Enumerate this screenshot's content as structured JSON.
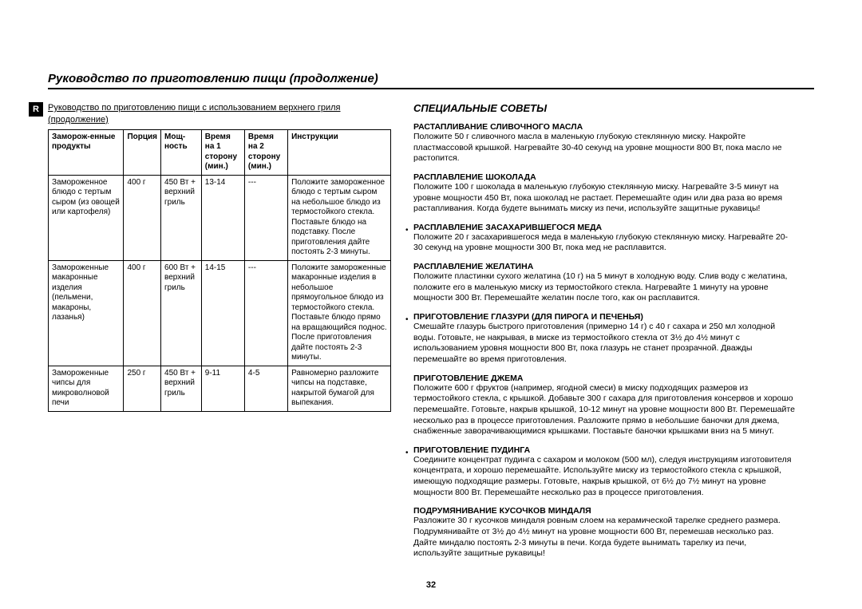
{
  "page": {
    "title": "Руководство по приготовлению пищи (продолжение)",
    "number": "32",
    "side_tab": "R"
  },
  "left": {
    "heading": "Руководство по приготовлению пищи с использованием верхнего гриля (продолжение)",
    "table": {
      "headers": [
        "Заморож-енные продукты",
        "Порция",
        "Мощ-ность",
        "Время на 1 сторону (мин.)",
        "Время на 2 сторону (мин.)",
        "Инструкции"
      ],
      "rows": [
        [
          "Замороженное блюдо с тертым сыром (из овощей или картофеля)",
          "400 г",
          "450 Вт + верхний гриль",
          "13-14",
          "---",
          "Положите замороженное блюдо с тертым сыром на небольшое блюдо из термостойкого стекла. Поставьте блюдо на подставку. После приготовления дайте постоять 2-3 минуты."
        ],
        [
          "Замороженные макаронные изделия (пельмени, макароны, лазанья)",
          "400 г",
          "600 Вт + верхний гриль",
          "14-15",
          "---",
          "Положите замороженные макаронные изделия в небольшое прямоугольное блюдо из термостойкого стекла. Поставьте блюдо прямо на вращающийся поднос. После приготовления дайте постоять 2-3 минуты."
        ],
        [
          "Замороженные чипсы для микроволновой печи",
          "250 г",
          "450 Вт + верхний гриль",
          "9-11",
          "4-5",
          "Равномерно разложите чипсы на подставке, накрытой бумагой для выпекания."
        ]
      ]
    }
  },
  "right": {
    "heading": "СПЕЦИАЛЬНЫЕ СОВЕТЫ",
    "tips": [
      {
        "title": "РАСТАПЛИВАНИЕ СЛИВОЧНОГО МАСЛА",
        "body": "Положите 50 г сливочного масла в маленькую глубокую стеклянную миску. Накройте пластмассовой крышкой. Нагревайте 30-40 секунд на уровне мощности 800 Вт, пока масло не растопится.",
        "bullet": false
      },
      {
        "title": "РАСПЛАВЛЕНИЕ ШОКОЛАДА",
        "body": "Положите 100 г шоколада в маленькую глубокую стеклянную миску. Нагревайте 3-5 минут на уровне мощности 450 Вт, пока шоколад не растает. Перемешайте один или два раза во время растапливания. Когда будете вынимать миску из печи, используйте защитные рукавицы!",
        "bullet": false
      },
      {
        "title": "РАСПЛАВЛЕНИЕ ЗАСАХАРИВШЕГОСЯ МЕДА",
        "body": "Положите 20 г засахарившегося меда в маленькую глубокую стеклянную миску. Нагревайте 20-30 секунд на уровне мощности 300 Вт, пока мед не расплавится.",
        "bullet": true
      },
      {
        "title": "РАСПЛАВЛЕНИЕ ЖЕЛАТИНА",
        "body": "Положите пластинки сухого желатина (10 г) на 5 минут в холодную воду. Слив воду с желатина, положите его в маленькую миску из термостойкого стекла. Нагревайте 1 минуту на уровне мощности 300 Вт. Перемешайте желатин после того, как он расплавится.",
        "bullet": false
      },
      {
        "title": "ПРИГОТОВЛЕНИЕ ГЛАЗУРИ (ДЛЯ ПИРОГА И ПЕЧЕНЬЯ)",
        "body": "Смешайте глазурь быстрого приготовления (примерно 14 г) с 40 г сахара и 250 мл холодной воды. Готовьте, не накрывая, в миске из термостойкого стекла от 3½ до 4½ минут с использованием уровня мощности 800 Вт, пока глазурь не станет прозрачной. Дважды перемешайте во время приготовления.",
        "bullet": true
      },
      {
        "title": "ПРИГОТОВЛЕНИЕ ДЖЕМА",
        "body": "Положите 600 г фруктов (например, ягодной смеси) в миску подходящих размеров из термостойкого стекла, с крышкой. Добавьте 300 г сахара для приготовления консервов и хорошо перемешайте. Готовьте, накрыв крышкой, 10-12 минут на уровне мощности 800 Вт. Перемешайте несколько раз в процессе приготовления. Разложите прямо в небольшие баночки для джема, снабженные заворачивающимися крышками. Поставьте баночки крышками вниз на 5 минут.",
        "bullet": false
      },
      {
        "title": "ПРИГОТОВЛЕНИЕ ПУДИНГА",
        "body": "Соедините концентрат пудинга с сахаром и молоком (500 мл), следуя инструкциям изготовителя концентрата, и хорошо перемешайте. Используйте миску из термостойкого стекла с крышкой, имеющую подходящие размеры. Готовьте, накрыв крышкой, от 6½ до 7½ минут на уровне мощности 800 Вт. Перемешайте несколько раз в процессе приготовления.",
        "bullet": true
      },
      {
        "title": "ПОДРУМЯНИВАНИЕ КУСОЧКОВ МИНДАЛЯ",
        "body": "Разложите 30 г кусочков миндаля ровным слоем на керамической тарелке среднего размера. Подрумянивайте от 3½ до 4½ минут на уровне мощности 600 Вт, перемешав несколько раз. Дайте миндалю постоять 2-3 минуты в печи. Когда будете вынимать тарелку из печи, используйте защитные рукавицы!",
        "bullet": false
      }
    ]
  }
}
